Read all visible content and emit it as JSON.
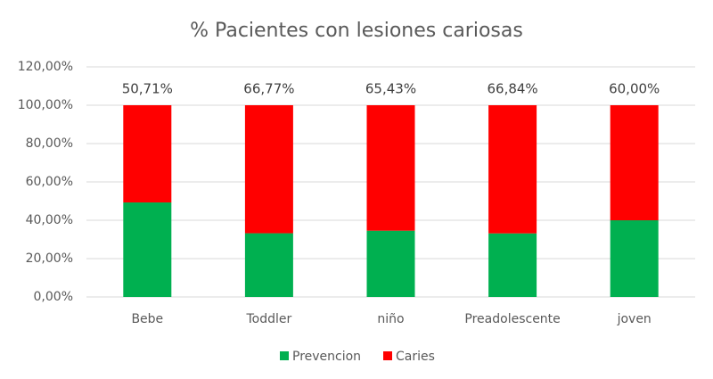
{
  "chart_data": {
    "type": "stacked_bar",
    "title": "% Pacientes con lesiones cariosas",
    "categories": [
      "Bebe",
      "Toddler",
      "niño",
      "Preadolescente",
      "joven"
    ],
    "series": [
      {
        "name": "Prevencion",
        "color": "#00b050",
        "values": [
          49.29,
          33.23,
          34.57,
          33.16,
          40.0
        ]
      },
      {
        "name": "Caries",
        "color": "#ff0000",
        "values": [
          50.71,
          66.77,
          65.43,
          66.84,
          60.0
        ],
        "value_labels": [
          "50,71%",
          "66,77%",
          "65,43%",
          "66,84%",
          "60,00%"
        ]
      }
    ],
    "ylim": [
      0,
      120
    ],
    "yticks": [
      {
        "value": 0,
        "label": "0,00%"
      },
      {
        "value": 20,
        "label": "20,00%"
      },
      {
        "value": 40,
        "label": "40,00%"
      },
      {
        "value": 60,
        "label": "60,00%"
      },
      {
        "value": 80,
        "label": "80,00%"
      },
      {
        "value": 100,
        "label": "100,00%"
      },
      {
        "value": 120,
        "label": "120,00%"
      }
    ],
    "grid": true,
    "legend": "bottom"
  }
}
